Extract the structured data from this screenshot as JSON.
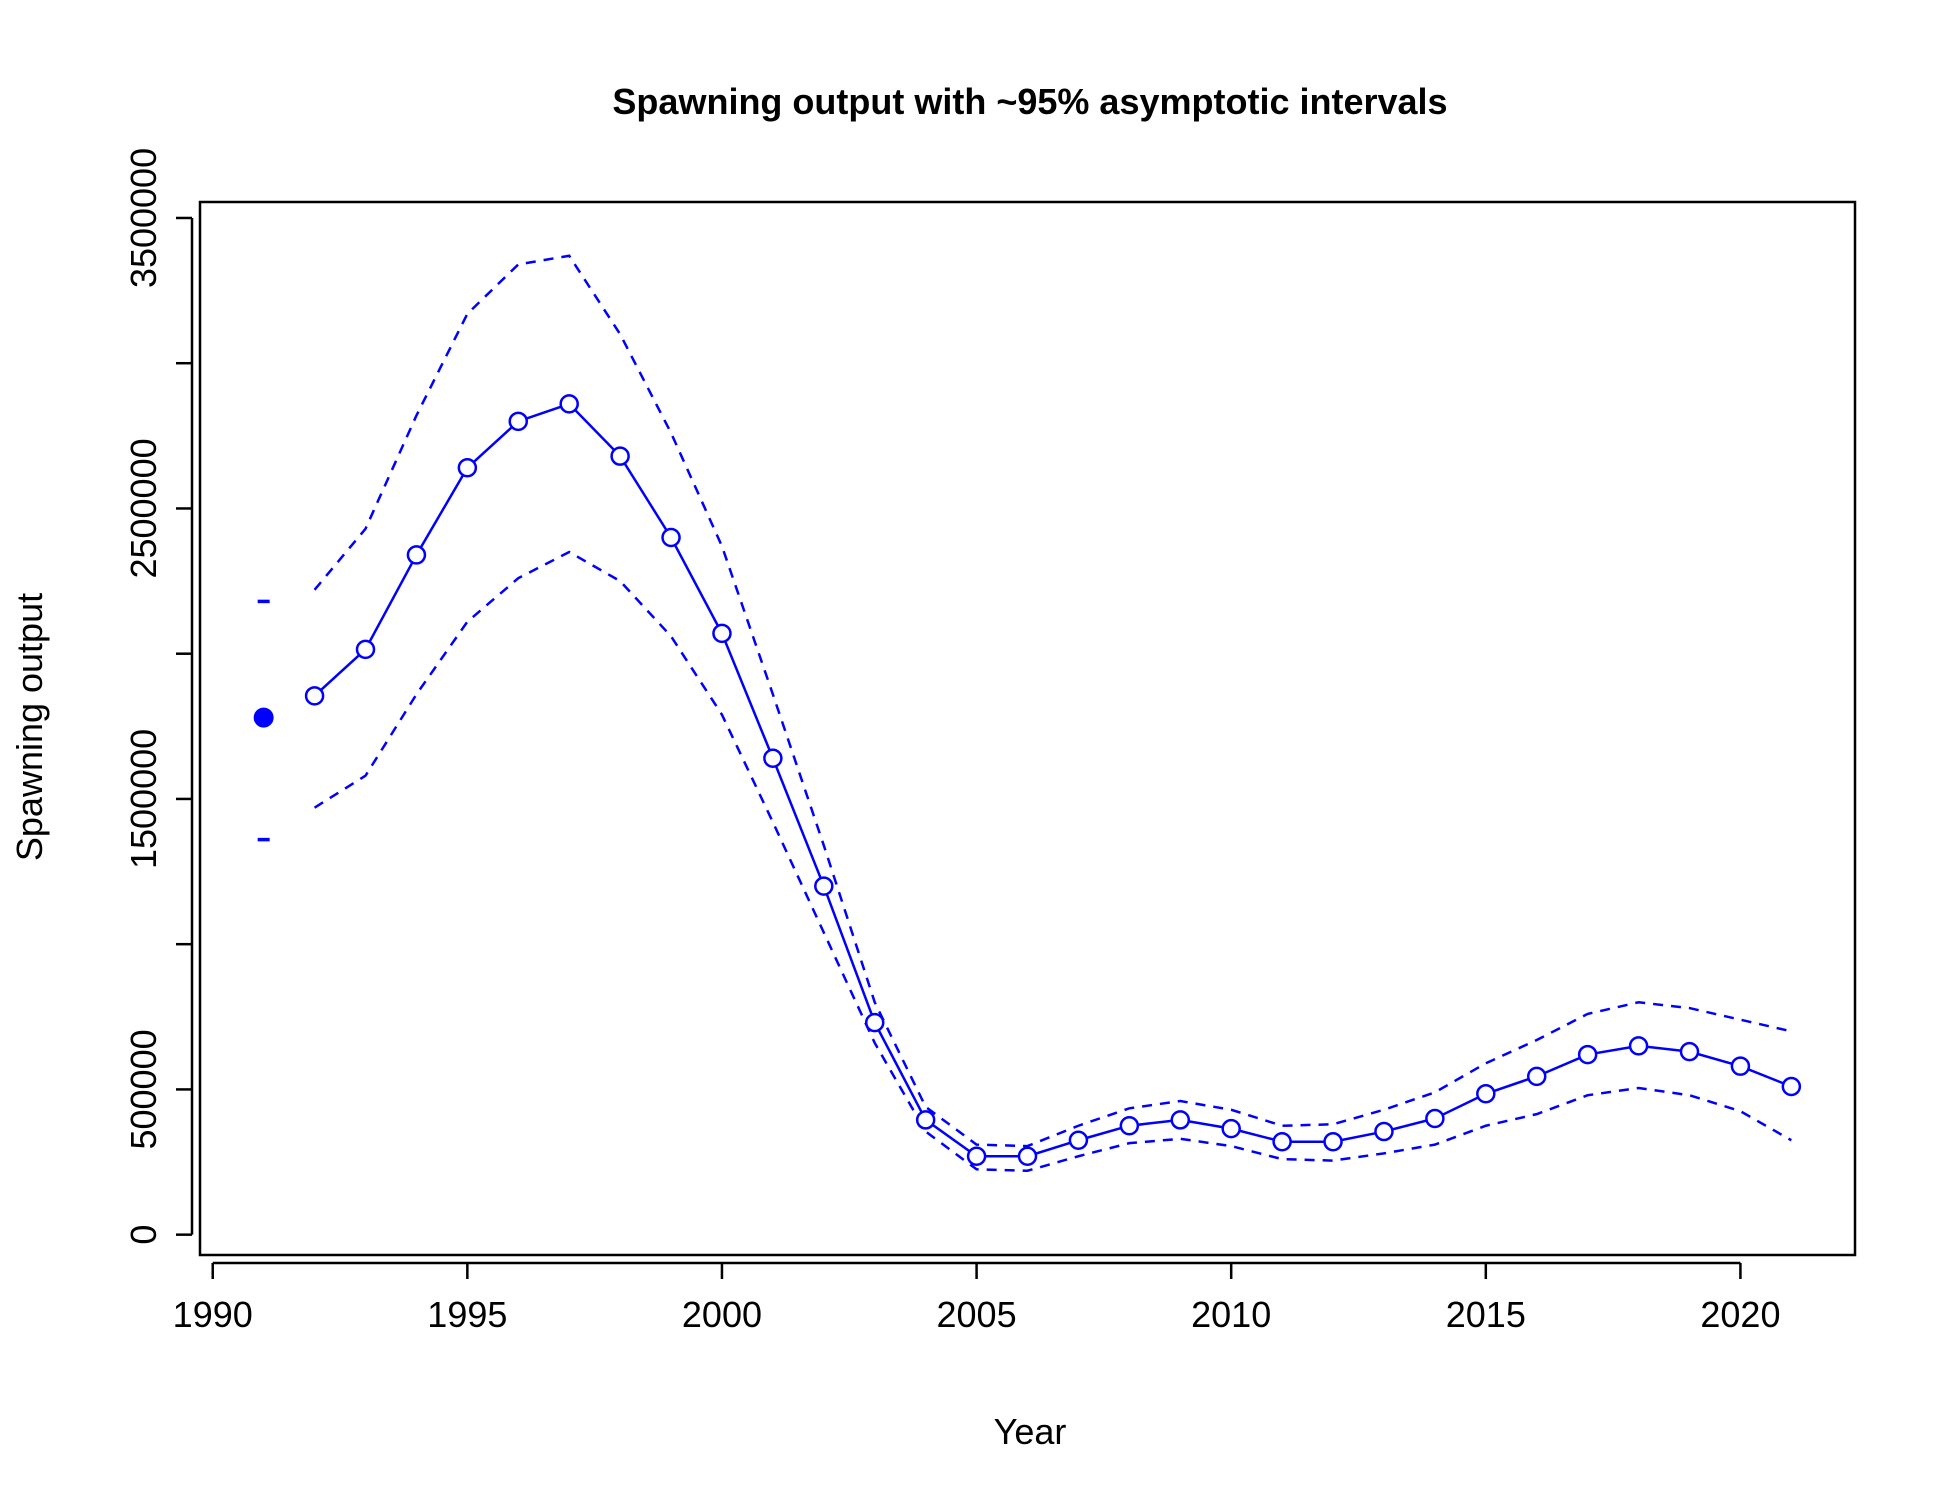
{
  "chart_data": {
    "type": "line",
    "title": "Spawning output with ~95% asymptotic intervals",
    "xlabel": "Year",
    "ylabel": "Spawning output",
    "xlim": [
      1990,
      2021
    ],
    "ylim": [
      0,
      3500000
    ],
    "x_ticks": [
      "1990",
      "1995",
      "2000",
      "2005",
      "2010",
      "2015",
      "2020"
    ],
    "y_ticks": [
      "0",
      "500000",
      "1500000",
      "2500000",
      "3500000"
    ],
    "y_minor_ticks": [
      1000000,
      2000000,
      3000000
    ],
    "color": "#0000ff",
    "grid": false,
    "legend": "none",
    "virgin": {
      "year": 1991,
      "value": 1780000,
      "lower": 1360000,
      "upper": 2180000
    },
    "series": [
      {
        "x": [
          1992,
          1993,
          1994,
          1995,
          1996,
          1997,
          1998,
          1999,
          2000,
          2001,
          2002,
          2003,
          2004,
          2005,
          2006,
          2007,
          2008,
          2009,
          2010,
          2011,
          2012,
          2013,
          2014,
          2015,
          2016,
          2017,
          2018,
          2019,
          2020,
          2021
        ],
        "y": [
          1855000,
          2015000,
          2340000,
          2640000,
          2800000,
          2860000,
          2680000,
          2400000,
          2070000,
          1640000,
          1200000,
          730000,
          395000,
          270000,
          270000,
          325000,
          375000,
          395000,
          365000,
          320000,
          320000,
          355000,
          400000,
          485000,
          545000,
          620000,
          650000,
          630000,
          580000,
          510000
        ]
      },
      {
        "x": [
          1992,
          1993,
          1994,
          1995,
          1996,
          1997,
          1998,
          1999,
          2000,
          2001,
          2002,
          2003,
          2004,
          2005,
          2006,
          2007,
          2008,
          2009,
          2010,
          2011,
          2012,
          2013,
          2014,
          2015,
          2016,
          2017,
          2018,
          2019,
          2020,
          2021
        ],
        "y": [
          2220000,
          2430000,
          2820000,
          3170000,
          3340000,
          3370000,
          3100000,
          2760000,
          2370000,
          1860000,
          1340000,
          800000,
          440000,
          310000,
          305000,
          375000,
          435000,
          460000,
          430000,
          375000,
          380000,
          430000,
          490000,
          590000,
          670000,
          760000,
          800000,
          780000,
          740000,
          700000
        ]
      },
      {
        "x": [
          1992,
          1993,
          1994,
          1995,
          1996,
          1997,
          1998,
          1999,
          2000,
          2001,
          2002,
          2003,
          2004,
          2005,
          2006,
          2007,
          2008,
          2009,
          2010,
          2011,
          2012,
          2013,
          2014,
          2015,
          2016,
          2017,
          2018,
          2019,
          2020,
          2021
        ],
        "y": [
          1470000,
          1580000,
          1860000,
          2110000,
          2260000,
          2350000,
          2250000,
          2060000,
          1790000,
          1420000,
          1040000,
          660000,
          355000,
          225000,
          220000,
          270000,
          315000,
          330000,
          305000,
          260000,
          255000,
          280000,
          310000,
          375000,
          415000,
          480000,
          505000,
          480000,
          425000,
          325000
        ]
      }
    ]
  }
}
